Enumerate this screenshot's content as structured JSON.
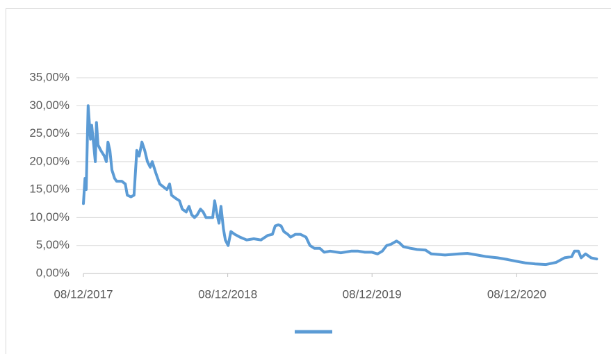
{
  "chart_data": {
    "type": "line",
    "x": [
      "2017-12-08",
      "2017-12-12",
      "2017-12-15",
      "2017-12-20",
      "2017-12-26",
      "2017-12-29",
      "2018-01-03",
      "2018-01-07",
      "2018-01-10",
      "2018-01-14",
      "2018-01-21",
      "2018-01-30",
      "2018-02-04",
      "2018-02-08",
      "2018-02-13",
      "2018-02-18",
      "2018-02-25",
      "2018-03-02",
      "2018-03-15",
      "2018-03-24",
      "2018-03-29",
      "2018-04-07",
      "2018-04-15",
      "2018-04-22",
      "2018-04-28",
      "2018-05-05",
      "2018-05-12",
      "2018-05-19",
      "2018-05-26",
      "2018-05-31",
      "2018-06-09",
      "2018-06-19",
      "2018-06-28",
      "2018-07-07",
      "2018-07-14",
      "2018-07-19",
      "2018-07-28",
      "2018-08-08",
      "2018-08-15",
      "2018-08-25",
      "2018-09-01",
      "2018-09-08",
      "2018-09-15",
      "2018-09-22",
      "2018-09-30",
      "2018-10-07",
      "2018-10-14",
      "2018-10-21",
      "2018-10-31",
      "2018-11-05",
      "2018-11-11",
      "2018-11-16",
      "2018-11-21",
      "2018-11-27",
      "2018-12-02",
      "2018-12-09",
      "2018-12-16",
      "2018-12-26",
      "2019-01-08",
      "2019-01-25",
      "2019-02-12",
      "2019-03-02",
      "2019-03-19",
      "2019-03-31",
      "2019-04-07",
      "2019-04-15",
      "2019-04-22",
      "2019-04-29",
      "2019-05-09",
      "2019-05-16",
      "2019-05-28",
      "2019-06-10",
      "2019-06-24",
      "2019-07-04",
      "2019-07-15",
      "2019-07-29",
      "2019-08-09",
      "2019-08-24",
      "2019-09-20",
      "2019-10-16",
      "2019-11-03",
      "2019-11-20",
      "2019-12-08",
      "2019-12-22",
      "2020-01-03",
      "2020-01-14",
      "2020-01-24",
      "2020-02-08",
      "2020-02-15",
      "2020-02-25",
      "2020-03-14",
      "2020-03-31",
      "2020-04-21",
      "2020-05-06",
      "2020-06-10",
      "2020-07-15",
      "2020-08-05",
      "2020-08-30",
      "2020-09-23",
      "2020-10-20",
      "2020-11-15",
      "2020-12-06",
      "2020-12-29",
      "2021-01-24",
      "2021-02-20",
      "2021-03-18",
      "2021-04-08",
      "2021-04-26",
      "2021-05-03",
      "2021-05-13",
      "2021-05-20",
      "2021-05-31",
      "2021-06-14",
      "2021-06-28"
    ],
    "series": [
      {
        "color": "#5b9bd5",
        "values": [
          12.5,
          17,
          15,
          30,
          24,
          26.5,
          23,
          20,
          27,
          23,
          22,
          21,
          20,
          23.5,
          22,
          18.5,
          17,
          16.5,
          16.5,
          16,
          14,
          13.7,
          14,
          22,
          21,
          23.5,
          22,
          20,
          19,
          20,
          18,
          16,
          15.5,
          15,
          16,
          14,
          13.5,
          13,
          11.5,
          11,
          12,
          10.5,
          10,
          10.5,
          11.5,
          11,
          10,
          10,
          10,
          13,
          10.5,
          9,
          12,
          8,
          6,
          5,
          7.5,
          7,
          6.5,
          6,
          6.2,
          6,
          6.8,
          7,
          8.5,
          8.7,
          8.5,
          7.5,
          7,
          6.5,
          7,
          7,
          6.5,
          5,
          4.5,
          4.5,
          3.8,
          4,
          3.7,
          4,
          4,
          3.8,
          3.8,
          3.5,
          4,
          5,
          5.2,
          5.8,
          5.5,
          4.8,
          4.5,
          4.3,
          4.2,
          3.5,
          3.3,
          3.5,
          3.6,
          3.3,
          3,
          2.8,
          2.5,
          2.2,
          1.9,
          1.7,
          1.6,
          2,
          2.8,
          3,
          4,
          4,
          2.8,
          3.5,
          2.8,
          2.6
        ]
      }
    ],
    "xlim": [
      "2017-12-08",
      "2021-07-01"
    ],
    "xticks": [
      {
        "value": "2017-12-08",
        "label": "08/12/2017"
      },
      {
        "value": "2018-12-08",
        "label": "08/12/2018"
      },
      {
        "value": "2019-12-08",
        "label": "08/12/2019"
      },
      {
        "value": "2020-12-08",
        "label": "08/12/2020"
      }
    ],
    "ylim": [
      0,
      35
    ],
    "yticks": [
      {
        "value": 0,
        "label": "0,00%"
      },
      {
        "value": 5,
        "label": "5,00%"
      },
      {
        "value": 10,
        "label": "10,00%"
      },
      {
        "value": 15,
        "label": "15,00%"
      },
      {
        "value": 20,
        "label": "20,00%"
      },
      {
        "value": 25,
        "label": "25,00%"
      },
      {
        "value": 30,
        "label": "30,00%"
      },
      {
        "value": 35,
        "label": "35,00%"
      }
    ],
    "grid": true
  }
}
